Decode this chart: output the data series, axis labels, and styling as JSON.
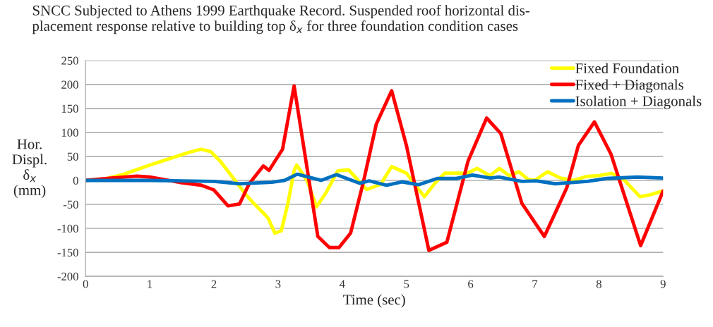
{
  "chart_data": {
    "type": "line",
    "title": "SNCC Subjected to Athens 1999 Earthquake Record. Suspended roof horizontal dis-\nplacement response relative to building top δ$_{x}$ for three foundation condition cases",
    "xlabel": "Time (sec)",
    "ylabel": "Hor.\nDispl.\nδ$_{x}$\n(mm)",
    "xlim": [
      0,
      9
    ],
    "xticks": [
      0,
      1,
      2,
      3,
      4,
      5,
      6,
      7,
      8,
      9
    ],
    "ylim": [
      -200,
      250
    ],
    "yticks": [
      -200,
      -150,
      -100,
      -50,
      0,
      50,
      100,
      150,
      200,
      250
    ],
    "grid": "y",
    "legend": "top right",
    "marker": "none",
    "line_style": "solid",
    "series": [
      {
        "name": "Fixed Foundation",
        "color": "#ffff00",
        "x": [
          0,
          0.3,
          0.6,
          1.0,
          1.3,
          1.6,
          1.8,
          1.95,
          2.1,
          2.3,
          2.5,
          2.6,
          2.8,
          2.85,
          2.95,
          3.05,
          3.15,
          3.25,
          3.29,
          3.45,
          3.6,
          3.75,
          3.93,
          4.1,
          4.38,
          4.6,
          4.77,
          5.0,
          5.28,
          5.45,
          5.6,
          5.75,
          5.95,
          6.1,
          6.3,
          6.45,
          6.6,
          6.75,
          6.9,
          7.0,
          7.2,
          7.4,
          7.6,
          7.8,
          8.0,
          8.2,
          8.4,
          8.64,
          8.8,
          9.0
        ],
        "values": [
          0,
          3,
          13,
          32,
          45,
          58,
          65,
          60,
          40,
          5,
          -30,
          -45,
          -72,
          -80,
          -110,
          -105,
          -50,
          20,
          32,
          0,
          -55,
          -25,
          20,
          22,
          -19,
          -8,
          29,
          15,
          -34,
          -5,
          15,
          15,
          15,
          25,
          10,
          25,
          10,
          18,
          2,
          0,
          18,
          5,
          0,
          8,
          10,
          15,
          0,
          -34,
          -30,
          -22
        ]
      },
      {
        "name": "Fixed + Diagonals",
        "color": "#ff0000",
        "x": [
          0,
          0.4,
          0.8,
          1.0,
          1.5,
          1.8,
          2.0,
          2.22,
          2.4,
          2.55,
          2.77,
          2.86,
          3.07,
          3.25,
          3.62,
          3.8,
          3.95,
          4.13,
          4.33,
          4.53,
          4.77,
          5.0,
          5.35,
          5.63,
          5.96,
          6.25,
          6.47,
          6.8,
          7.15,
          7.5,
          7.68,
          7.93,
          8.19,
          8.65,
          9.0
        ],
        "values": [
          0,
          5,
          9,
          7,
          -5,
          -10,
          -20,
          -53,
          -49,
          -7,
          30,
          21,
          65,
          197,
          -117,
          -140,
          -140,
          -110,
          -3,
          117,
          187,
          73,
          -146,
          -129,
          40,
          130,
          98,
          -48,
          -117,
          -15,
          73,
          122,
          54,
          -136,
          -22
        ]
      },
      {
        "name": "Isolation + Diagonals",
        "color": "#0070c0",
        "x": [
          0,
          1.0,
          2.0,
          2.4,
          2.9,
          3.1,
          3.3,
          3.67,
          3.91,
          4.27,
          4.42,
          4.69,
          4.93,
          5.19,
          5.48,
          5.78,
          6.03,
          6.31,
          6.44,
          6.8,
          7.02,
          7.32,
          7.82,
          8.12,
          8.6,
          9.0
        ],
        "values": [
          0,
          0,
          -2,
          -7,
          -4,
          0,
          13,
          0,
          12,
          -6,
          -1,
          -10,
          -3,
          -9,
          4,
          4,
          11,
          5,
          7,
          -2,
          -1,
          -7,
          -2,
          4,
          7,
          5
        ]
      }
    ]
  }
}
